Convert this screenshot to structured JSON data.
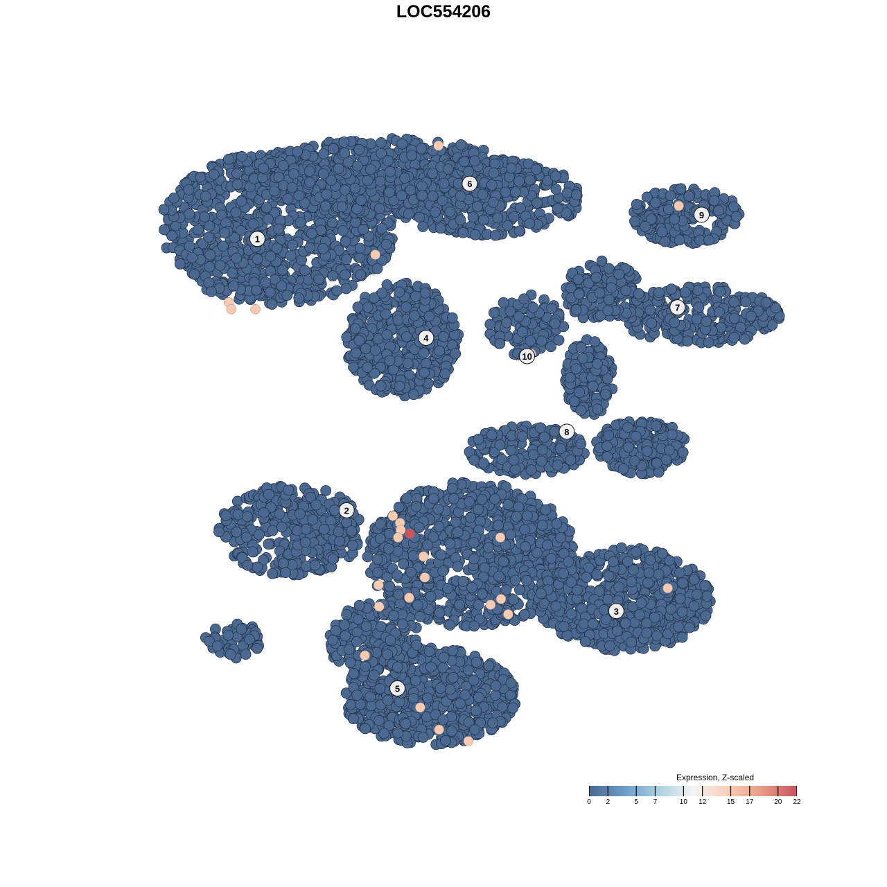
{
  "chart_data": {
    "type": "scatter",
    "title": "LOC554206",
    "xlabel": "",
    "ylabel": "",
    "xlim": [
      0,
      100
    ],
    "ylim": [
      0,
      100
    ],
    "grid": false,
    "legend": {
      "title": "Expression, Z-scaled",
      "placement": "bottom-right",
      "ticks": [
        0,
        2,
        5,
        7,
        10,
        12,
        15,
        17,
        20,
        22
      ],
      "range": [
        0,
        22
      ],
      "colors": [
        "#4a6890",
        "#6b9bc8",
        "#a9d0e2",
        "#f4f4f4",
        "#f9cfb6",
        "#e89a85",
        "#c85460"
      ]
    },
    "background_value": 0,
    "background_color": "#4a6890",
    "clusters": [
      {
        "label": "1",
        "x": 19.3,
        "y": 82.0
      },
      {
        "label": "2",
        "x": 33.0,
        "y": 39.2
      },
      {
        "label": "3",
        "x": 74.4,
        "y": 23.3
      },
      {
        "label": "4",
        "x": 45.2,
        "y": 66.4
      },
      {
        "label": "5",
        "x": 40.8,
        "y": 11.1
      },
      {
        "label": "6",
        "x": 51.9,
        "y": 90.7
      },
      {
        "label": "7",
        "x": 83.8,
        "y": 71.2
      },
      {
        "label": "8",
        "x": 66.8,
        "y": 51.6
      },
      {
        "label": "9",
        "x": 87.5,
        "y": 85.8
      },
      {
        "label": "10",
        "x": 60.7,
        "y": 63.5
      }
    ],
    "expressing_points": [
      {
        "x": 47.1,
        "y": 96.7,
        "value": 15
      },
      {
        "x": 37.4,
        "y": 79.5,
        "value": 15
      },
      {
        "x": 14.9,
        "y": 72.0,
        "value": 15
      },
      {
        "x": 15.3,
        "y": 70.9,
        "value": 15
      },
      {
        "x": 19.0,
        "y": 70.9,
        "value": 15
      },
      {
        "x": 84.0,
        "y": 87.2,
        "value": 15
      },
      {
        "x": 61.3,
        "y": 63.9,
        "value": 15
      },
      {
        "x": 40.1,
        "y": 38.3,
        "value": 15
      },
      {
        "x": 41.2,
        "y": 37.2,
        "value": 15
      },
      {
        "x": 41.3,
        "y": 36.1,
        "value": 15
      },
      {
        "x": 40.9,
        "y": 34.9,
        "value": 15
      },
      {
        "x": 42.7,
        "y": 35.5,
        "value": 22
      },
      {
        "x": 56.6,
        "y": 34.9,
        "value": 15
      },
      {
        "x": 44.8,
        "y": 31.9,
        "value": 15
      },
      {
        "x": 45.0,
        "y": 28.6,
        "value": 15
      },
      {
        "x": 37.9,
        "y": 27.4,
        "value": 15
      },
      {
        "x": 42.6,
        "y": 25.4,
        "value": 15
      },
      {
        "x": 38.0,
        "y": 24.0,
        "value": 15
      },
      {
        "x": 55.1,
        "y": 24.3,
        "value": 15
      },
      {
        "x": 56.7,
        "y": 25.2,
        "value": 15
      },
      {
        "x": 57.8,
        "y": 22.8,
        "value": 15
      },
      {
        "x": 82.3,
        "y": 26.9,
        "value": 15
      },
      {
        "x": 35.8,
        "y": 16.3,
        "value": 15
      },
      {
        "x": 44.3,
        "y": 8.1,
        "value": 15
      },
      {
        "x": 47.2,
        "y": 4.6,
        "value": 15
      },
      {
        "x": 51.7,
        "y": 2.8,
        "value": 15
      }
    ]
  }
}
